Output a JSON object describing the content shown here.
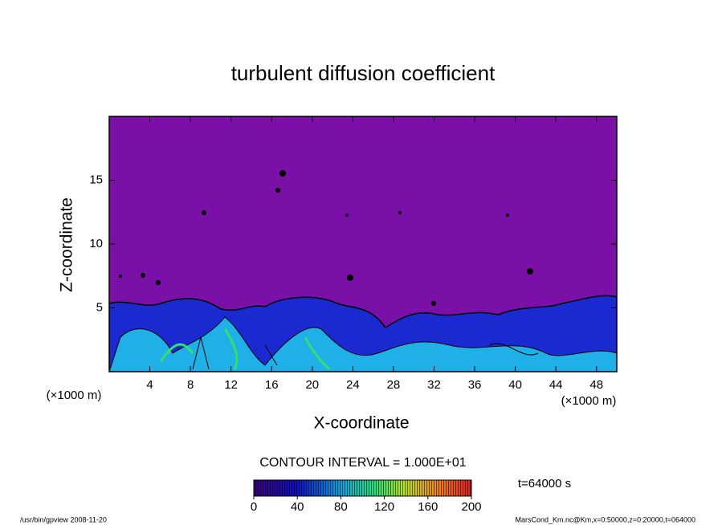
{
  "chart_data": {
    "type": "contour",
    "title": "turbulent diffusion coefficient",
    "xlabel": "X-coordinate",
    "ylabel": "Z-coordinate",
    "x_unit": "(×1000 m)",
    "xlim": [
      0,
      50
    ],
    "xticks": [
      4,
      8,
      12,
      16,
      20,
      24,
      28,
      32,
      36,
      40,
      44,
      48
    ],
    "ylim": [
      0,
      20
    ],
    "yticks": [
      5,
      10,
      15
    ],
    "contour_interval": "CONTOUR INTERVAL = 1.000E+01",
    "time": "t=64000 s",
    "colorbar": {
      "lim": [
        0,
        200
      ],
      "ticks": [
        0,
        40,
        80,
        120,
        160,
        200
      ]
    },
    "footer_left": "/usr/bin/gpview  2008-11-20",
    "footer_right": "MarsCond_Km.nc@Km,x=0:50000,z=0:20000,t=064000"
  }
}
